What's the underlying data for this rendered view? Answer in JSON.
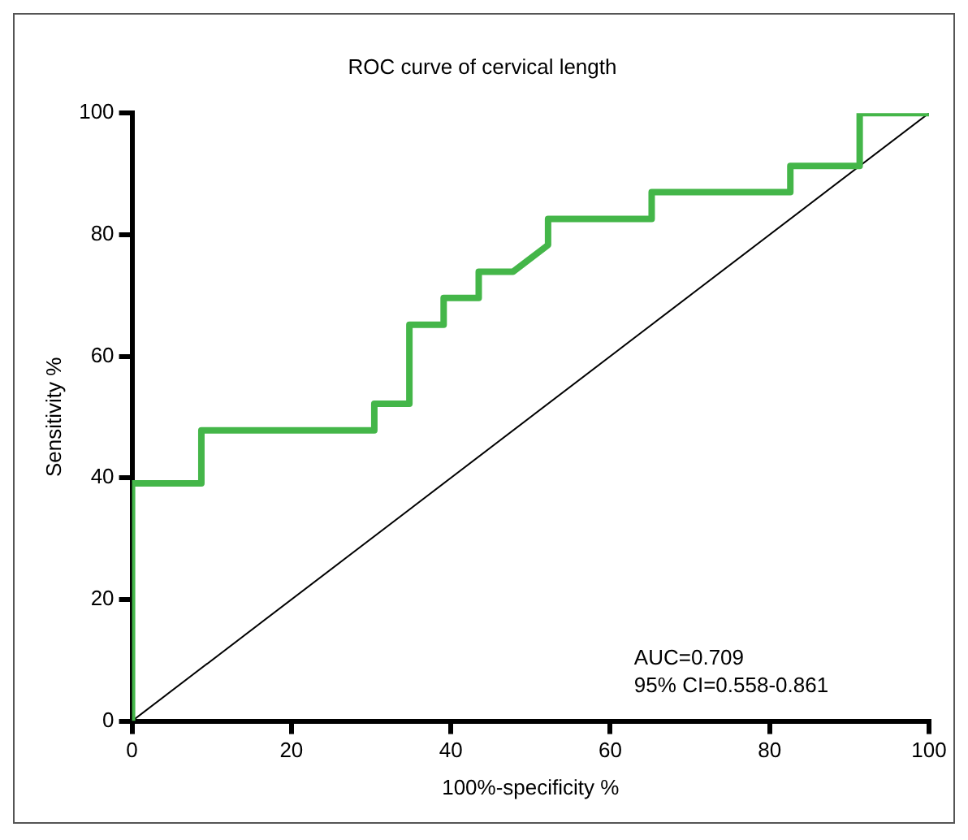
{
  "chart_data": {
    "type": "line",
    "title": "ROC curve of cervical length",
    "xlabel": "100%-specificity %",
    "ylabel": "Sensitivity %",
    "series": [
      {
        "color": "#44b649",
        "x": [
          0,
          0,
          8.7,
          8.7,
          30.4,
          30.4,
          34.8,
          34.8,
          39.1,
          39.1,
          43.5,
          43.5,
          47.8,
          52.2,
          52.2,
          65.2,
          65.2,
          82.6,
          82.6,
          91.3,
          91.3,
          100
        ],
        "values": [
          0,
          39.1,
          39.1,
          47.8,
          47.8,
          52.2,
          52.2,
          65.2,
          65.2,
          69.6,
          69.6,
          73.9,
          73.9,
          78.3,
          82.6,
          82.6,
          87,
          87,
          91.3,
          91.3,
          100,
          100
        ]
      },
      {
        "color": "#000000",
        "x": [
          0,
          100
        ],
        "values": [
          0,
          100
        ]
      }
    ],
    "xlim": [
      0,
      100
    ],
    "xticks": [
      0,
      20,
      40,
      60,
      80,
      100
    ],
    "ylim": [
      0,
      100
    ],
    "yticks": [
      0,
      20,
      40,
      60,
      80,
      100
    ],
    "grid": false,
    "legend": false,
    "marker": "none",
    "line_style": "solid",
    "annotations": [
      "AUC=0.709",
      "95% CI=0.558-0.861"
    ]
  }
}
